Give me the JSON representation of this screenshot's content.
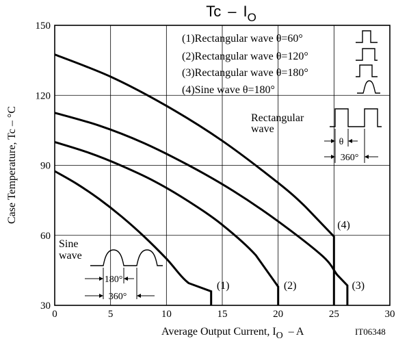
{
  "chart_data": {
    "type": "line",
    "title_main": "Tc",
    "title_dash": "–",
    "title_sym": "I",
    "title_sub": "O",
    "xlabel_main": "Average Output Current, I",
    "xlabel_sub": "O",
    "xlabel_unit": "–  A",
    "ylabel": "Case Temperature, Tc  –  °C",
    "code": "IT06348",
    "xlim": [
      0,
      30
    ],
    "ylim": [
      30,
      150
    ],
    "xticks": [
      "0",
      "5",
      "10",
      "15",
      "20",
      "25",
      "30"
    ],
    "yticks": [
      "30",
      "60",
      "90",
      "120",
      "150"
    ],
    "grid": true,
    "legend_items": [
      "(1)Rectangular wave θ=60°",
      "(2)Rectangular wave θ=120°",
      "(3)Rectangular wave θ=180°",
      "(4)Sine wave θ=180°"
    ],
    "series": [
      {
        "label": "(1)",
        "x": [
          0,
          2,
          4,
          6,
          8,
          10,
          12,
          14,
          14
        ],
        "y": [
          87.5,
          82,
          75.5,
          68,
          59.5,
          50,
          39.5,
          36,
          30
        ]
      },
      {
        "label": "(2)",
        "x": [
          0,
          3,
          6,
          9,
          12,
          15,
          18,
          20,
          20
        ],
        "y": [
          100,
          95.5,
          89.8,
          83,
          74.5,
          64.5,
          51.5,
          38,
          30
        ]
      },
      {
        "label": "(3)",
        "x": [
          0,
          4,
          8,
          12,
          16,
          20,
          24,
          25.3,
          26.2,
          26.2
        ],
        "y": [
          112.5,
          107,
          99.5,
          90,
          79,
          66,
          51,
          43,
          38.5,
          30
        ]
      },
      {
        "label": "(4)",
        "x": [
          0,
          5,
          10,
          15,
          20,
          22.5,
          25,
          25
        ],
        "y": [
          137.5,
          128,
          115.5,
          100.5,
          82.5,
          72,
          59.5,
          30
        ]
      }
    ],
    "inset_rect": {
      "label": "Rectangular\nwave",
      "theta": "θ",
      "period": "360°"
    },
    "inset_sine": {
      "label": "Sine\nwave",
      "width": "180°",
      "period": "360°"
    }
  }
}
